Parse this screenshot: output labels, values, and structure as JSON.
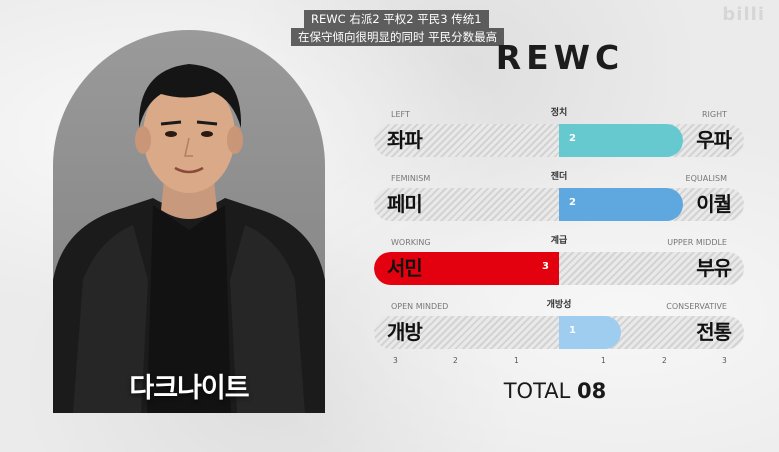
{
  "watermark": "billi",
  "captions": {
    "line1": "REWC 右派2 平权2 平民3 传统1",
    "line2": "在保守倾向很明显的同时 平民分数最高"
  },
  "profile": {
    "name": "다크나이트"
  },
  "title": "REWC",
  "rows": [
    {
      "category": "정치",
      "left_small": "LEFT",
      "right_small": "RIGHT",
      "left_label": "좌파",
      "right_label": "우파",
      "value": "2",
      "score": 2,
      "side": "right",
      "color": "#67c9d0"
    },
    {
      "category": "젠더",
      "left_small": "FEMINISM",
      "right_small": "EQUALISM",
      "left_label": "페미",
      "right_label": "이퀄",
      "value": "2",
      "score": 2,
      "side": "right",
      "color": "#5fa8df"
    },
    {
      "category": "계급",
      "left_small": "WORKING",
      "right_small": "UPPER MIDDLE",
      "left_label": "서민",
      "right_label": "부유",
      "value": "3",
      "score": 3,
      "side": "left",
      "color": "#e3000f"
    },
    {
      "category": "개방성",
      "left_small": "OPEN MINDED",
      "right_small": "CONSERVATIVE",
      "left_label": "개방",
      "right_label": "전통",
      "value": "1",
      "score": 1,
      "side": "right",
      "color": "#9ecdf0"
    }
  ],
  "scale": [
    "3",
    "2",
    "1",
    "1",
    "2",
    "3"
  ],
  "total": {
    "label": "TOTAL",
    "value": "08"
  }
}
